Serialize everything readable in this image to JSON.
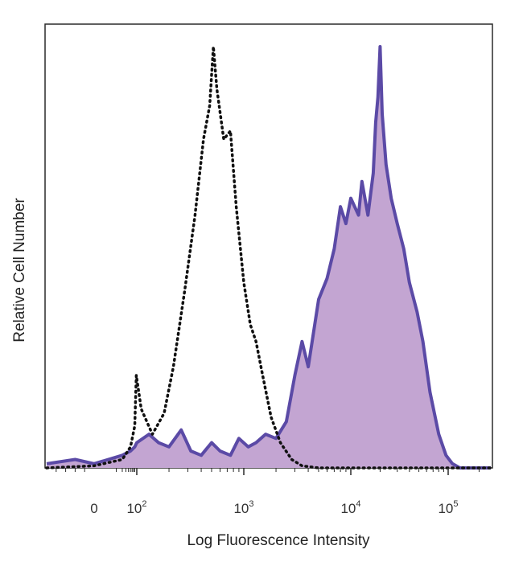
{
  "chart_data": {
    "type": "area",
    "title": "",
    "xlabel": "Log Fluorescence Intensity",
    "ylabel": "Relative Cell Number",
    "x_scale": "biexponential",
    "xlim": [
      -50,
      260000
    ],
    "ylim": [
      0,
      100
    ],
    "grid": false,
    "legend": "none",
    "x_ticks": [
      {
        "value": 0,
        "base": "0",
        "exp": ""
      },
      {
        "value": 100,
        "base": "10",
        "exp": "2"
      },
      {
        "value": 1000,
        "base": "10",
        "exp": "3"
      },
      {
        "value": 10000,
        "base": "10",
        "exp": "4"
      },
      {
        "value": 100000,
        "base": "10",
        "exp": "5"
      }
    ],
    "series": [
      {
        "style": "dotted",
        "color": "#111111",
        "points": [
          [
            -50,
            0
          ],
          [
            0,
            0.5
          ],
          [
            20,
            2
          ],
          [
            50,
            5
          ],
          [
            80,
            10
          ],
          [
            95,
            22
          ],
          [
            110,
            14
          ],
          [
            140,
            8
          ],
          [
            180,
            13
          ],
          [
            220,
            24
          ],
          [
            280,
            42
          ],
          [
            350,
            60
          ],
          [
            420,
            78
          ],
          [
            480,
            86
          ],
          [
            520,
            100
          ],
          [
            560,
            90
          ],
          [
            650,
            78
          ],
          [
            750,
            80
          ],
          [
            850,
            62
          ],
          [
            1000,
            44
          ],
          [
            1150,
            34
          ],
          [
            1300,
            30
          ],
          [
            1500,
            22
          ],
          [
            1800,
            12
          ],
          [
            2200,
            6
          ],
          [
            2800,
            2
          ],
          [
            3500,
            0.5
          ],
          [
            5000,
            0
          ],
          [
            260000,
            0
          ]
        ]
      },
      {
        "style": "filled",
        "color": "#5b4aa6",
        "fill": "#c3a5d2",
        "points": [
          [
            -50,
            1
          ],
          [
            -20,
            2
          ],
          [
            0,
            1
          ],
          [
            20,
            3
          ],
          [
            50,
            4
          ],
          [
            80,
            5
          ],
          [
            100,
            6
          ],
          [
            130,
            8
          ],
          [
            160,
            6
          ],
          [
            200,
            5
          ],
          [
            260,
            9
          ],
          [
            320,
            4
          ],
          [
            400,
            3
          ],
          [
            500,
            6
          ],
          [
            600,
            4
          ],
          [
            750,
            3
          ],
          [
            900,
            7
          ],
          [
            1100,
            5
          ],
          [
            1300,
            6
          ],
          [
            1600,
            8
          ],
          [
            2000,
            7
          ],
          [
            2500,
            11
          ],
          [
            3000,
            22
          ],
          [
            3500,
            30
          ],
          [
            4000,
            24
          ],
          [
            5000,
            40
          ],
          [
            6000,
            45
          ],
          [
            7000,
            52
          ],
          [
            8000,
            62
          ],
          [
            9000,
            58
          ],
          [
            10000,
            64
          ],
          [
            12000,
            60
          ],
          [
            13000,
            68
          ],
          [
            15000,
            60
          ],
          [
            17000,
            70
          ],
          [
            18000,
            82
          ],
          [
            19000,
            88
          ],
          [
            20000,
            100
          ],
          [
            21000,
            84
          ],
          [
            23000,
            72
          ],
          [
            26000,
            64
          ],
          [
            30000,
            58
          ],
          [
            35000,
            52
          ],
          [
            40000,
            44
          ],
          [
            48000,
            37
          ],
          [
            55000,
            30
          ],
          [
            65000,
            18
          ],
          [
            80000,
            8
          ],
          [
            95000,
            3
          ],
          [
            110000,
            1
          ],
          [
            130000,
            0
          ],
          [
            260000,
            0
          ]
        ]
      }
    ]
  }
}
